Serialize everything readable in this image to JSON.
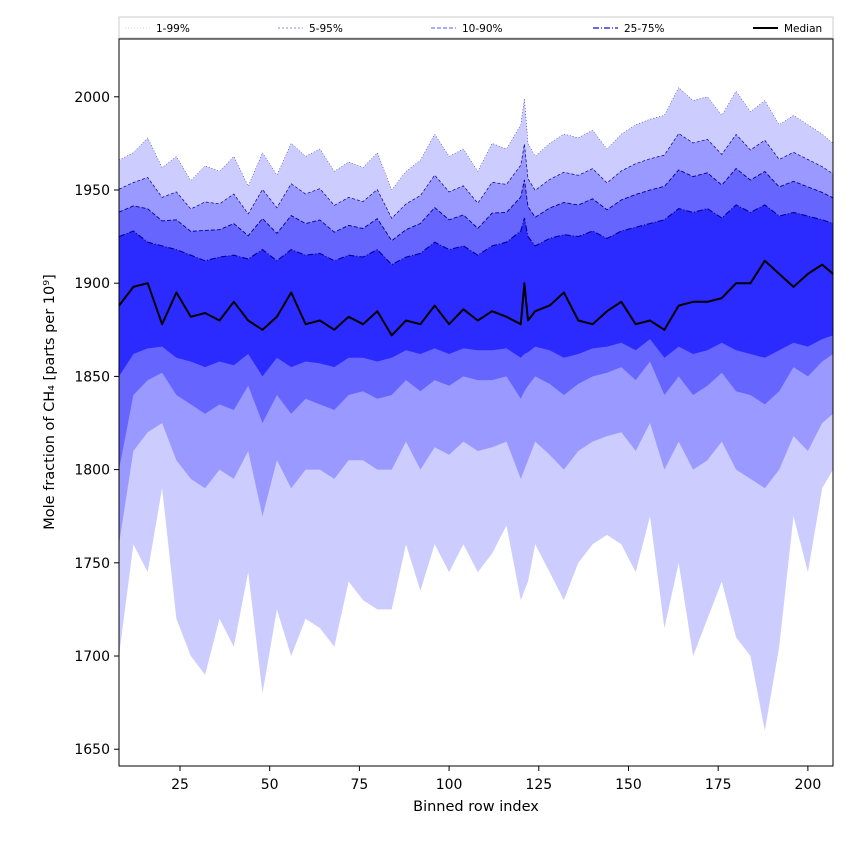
{
  "chart_data": {
    "type": "area",
    "xlabel": "Binned row index",
    "ylabel": "Mole fraction of CH₄ [parts per 10⁹]",
    "xlim": [
      8,
      207
    ],
    "ylim": [
      1641,
      2031
    ],
    "x_ticks": [
      25,
      50,
      75,
      100,
      125,
      150,
      175,
      200
    ],
    "y_ticks": [
      1650,
      1700,
      1750,
      1800,
      1850,
      1900,
      1950,
      2000
    ],
    "grid": false,
    "legend_position": "top",
    "x": [
      8,
      12,
      16,
      20,
      24,
      28,
      32,
      36,
      40,
      44,
      48,
      52,
      56,
      60,
      64,
      68,
      72,
      76,
      80,
      84,
      88,
      92,
      96,
      100,
      104,
      108,
      112,
      116,
      120,
      121,
      122,
      124,
      128,
      132,
      136,
      140,
      144,
      148,
      152,
      156,
      160,
      164,
      168,
      172,
      176,
      180,
      184,
      188,
      192,
      196,
      200,
      204,
      207
    ],
    "series": [
      {
        "name": "1-99%",
        "style": "dotted",
        "fill": "#ccccff",
        "low": [
          1700,
          1760,
          1745,
          1790,
          1720,
          1700,
          1690,
          1720,
          1705,
          1745,
          1680,
          1725,
          1700,
          1720,
          1715,
          1705,
          1740,
          1730,
          1725,
          1725,
          1760,
          1735,
          1760,
          1745,
          1760,
          1745,
          1755,
          1770,
          1730,
          1735,
          1740,
          1760,
          1745,
          1730,
          1750,
          1760,
          1765,
          1760,
          1745,
          1775,
          1715,
          1750,
          1700,
          1720,
          1740,
          1710,
          1700,
          1660,
          1705,
          1775,
          1745,
          1790,
          1800
        ],
        "high": [
          1966,
          1970,
          1978,
          1962,
          1968,
          1955,
          1963,
          1960,
          1968,
          1952,
          1970,
          1958,
          1975,
          1968,
          1972,
          1960,
          1965,
          1962,
          1970,
          1950,
          1960,
          1966,
          1980,
          1968,
          1972,
          1960,
          1975,
          1972,
          1985,
          1999,
          1975,
          1968,
          1975,
          1980,
          1978,
          1982,
          1972,
          1980,
          1985,
          1988,
          1990,
          2005,
          1998,
          2000,
          1990,
          2003,
          1992,
          1998,
          1985,
          1990,
          1985,
          1980,
          1975
        ]
      },
      {
        "name": "5-95%",
        "style": "dashed",
        "fill": "#9999ff",
        "low": [
          1760,
          1810,
          1820,
          1825,
          1805,
          1795,
          1790,
          1800,
          1795,
          1810,
          1775,
          1805,
          1790,
          1800,
          1800,
          1795,
          1805,
          1805,
          1800,
          1800,
          1815,
          1800,
          1812,
          1808,
          1815,
          1810,
          1812,
          1815,
          1795,
          1800,
          1805,
          1815,
          1808,
          1800,
          1810,
          1815,
          1818,
          1820,
          1810,
          1825,
          1800,
          1815,
          1800,
          1805,
          1815,
          1800,
          1795,
          1790,
          1800,
          1818,
          1810,
          1825,
          1830
        ]
      },
      {
        "name": "10-90%",
        "style": "dashed",
        "fill": "#6666ff",
        "low": [
          1800,
          1840,
          1848,
          1852,
          1840,
          1835,
          1830,
          1835,
          1832,
          1845,
          1825,
          1840,
          1830,
          1838,
          1835,
          1832,
          1840,
          1842,
          1838,
          1840,
          1848,
          1842,
          1848,
          1845,
          1850,
          1848,
          1848,
          1850,
          1838,
          1842,
          1845,
          1850,
          1846,
          1840,
          1846,
          1850,
          1852,
          1855,
          1848,
          1858,
          1840,
          1850,
          1840,
          1845,
          1852,
          1842,
          1840,
          1835,
          1842,
          1855,
          1850,
          1858,
          1862
        ]
      },
      {
        "name": "25-75%",
        "style": "dashdot",
        "fill": "#2b2bff",
        "low": [
          1850,
          1862,
          1865,
          1866,
          1860,
          1858,
          1855,
          1858,
          1856,
          1862,
          1850,
          1860,
          1855,
          1858,
          1857,
          1855,
          1860,
          1860,
          1858,
          1860,
          1864,
          1862,
          1865,
          1862,
          1865,
          1864,
          1864,
          1865,
          1860,
          1862,
          1863,
          1866,
          1864,
          1860,
          1862,
          1865,
          1866,
          1868,
          1864,
          1870,
          1860,
          1866,
          1862,
          1864,
          1868,
          1864,
          1862,
          1860,
          1864,
          1868,
          1866,
          1870,
          1872
        ],
        "high": [
          1925,
          1928,
          1922,
          1920,
          1918,
          1915,
          1912,
          1914,
          1915,
          1913,
          1918,
          1912,
          1918,
          1915,
          1916,
          1912,
          1915,
          1914,
          1918,
          1910,
          1914,
          1916,
          1922,
          1918,
          1920,
          1915,
          1920,
          1922,
          1928,
          1935,
          1925,
          1920,
          1924,
          1926,
          1925,
          1928,
          1924,
          1928,
          1930,
          1932,
          1934,
          1940,
          1938,
          1940,
          1935,
          1942,
          1938,
          1942,
          1936,
          1938,
          1936,
          1934,
          1932
        ]
      },
      {
        "name": "Median",
        "style": "solid",
        "stroke": "#000000",
        "values": [
          1888,
          1898,
          1900,
          1878,
          1895,
          1882,
          1884,
          1880,
          1890,
          1880,
          1875,
          1882,
          1895,
          1878,
          1880,
          1875,
          1882,
          1878,
          1885,
          1872,
          1880,
          1878,
          1888,
          1878,
          1886,
          1880,
          1885,
          1882,
          1878,
          1900,
          1880,
          1885,
          1888,
          1895,
          1880,
          1878,
          1885,
          1890,
          1878,
          1880,
          1875,
          1888,
          1890,
          1890,
          1892,
          1900,
          1900,
          1912,
          1905,
          1898,
          1905,
          1910,
          1905
        ]
      }
    ]
  }
}
